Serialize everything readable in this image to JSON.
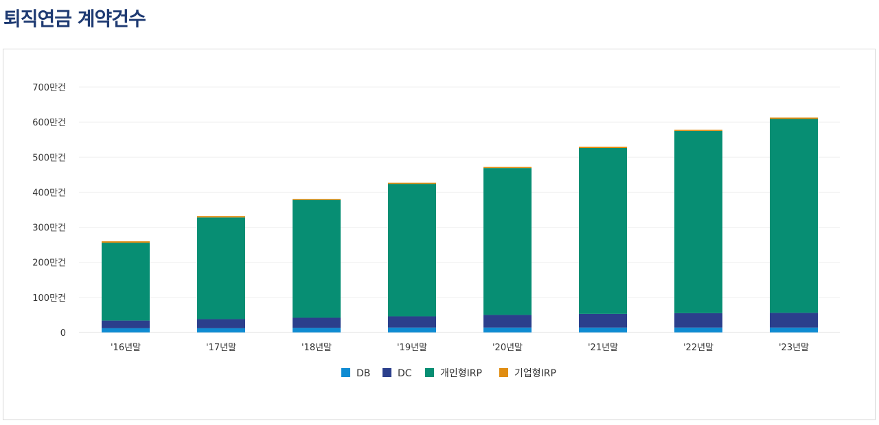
{
  "page": {
    "title": "퇴직연금 계약건수"
  },
  "chart_data": {
    "type": "bar",
    "stacked": true,
    "title": "",
    "xlabel": "",
    "ylabel": "",
    "categories": [
      "'16년말",
      "'17년말",
      "'18년말",
      "'19년말",
      "'20년말",
      "'21년말",
      "'22년말",
      "'23년말"
    ],
    "series": [
      {
        "name": "DB",
        "color": "#0f8bd2",
        "values": [
          12,
          12,
          13,
          14,
          14,
          14,
          14,
          14
        ]
      },
      {
        "name": "DC",
        "color": "#2b3f8c",
        "values": [
          22,
          26,
          29,
          32,
          36,
          39,
          41,
          42
        ]
      },
      {
        "name": "개인형IRP",
        "color": "#078e73",
        "values": [
          222,
          290,
          336,
          378,
          419,
          473,
          520,
          553
        ]
      },
      {
        "name": "기업형IRP",
        "color": "#e08d12",
        "values": [
          4,
          4,
          3,
          3,
          3,
          4,
          3,
          4
        ]
      }
    ],
    "ylim": [
      0,
      700
    ],
    "yticks": [
      {
        "value": 0,
        "label": "0"
      },
      {
        "value": 100,
        "label": "100만건"
      },
      {
        "value": 200,
        "label": "200만건"
      },
      {
        "value": 300,
        "label": "300만건"
      },
      {
        "value": 400,
        "label": "400만건"
      },
      {
        "value": 500,
        "label": "500만건"
      },
      {
        "value": 600,
        "label": "600만건"
      },
      {
        "value": 700,
        "label": "700만건"
      }
    ],
    "grid": true,
    "legend_position": "bottom"
  }
}
